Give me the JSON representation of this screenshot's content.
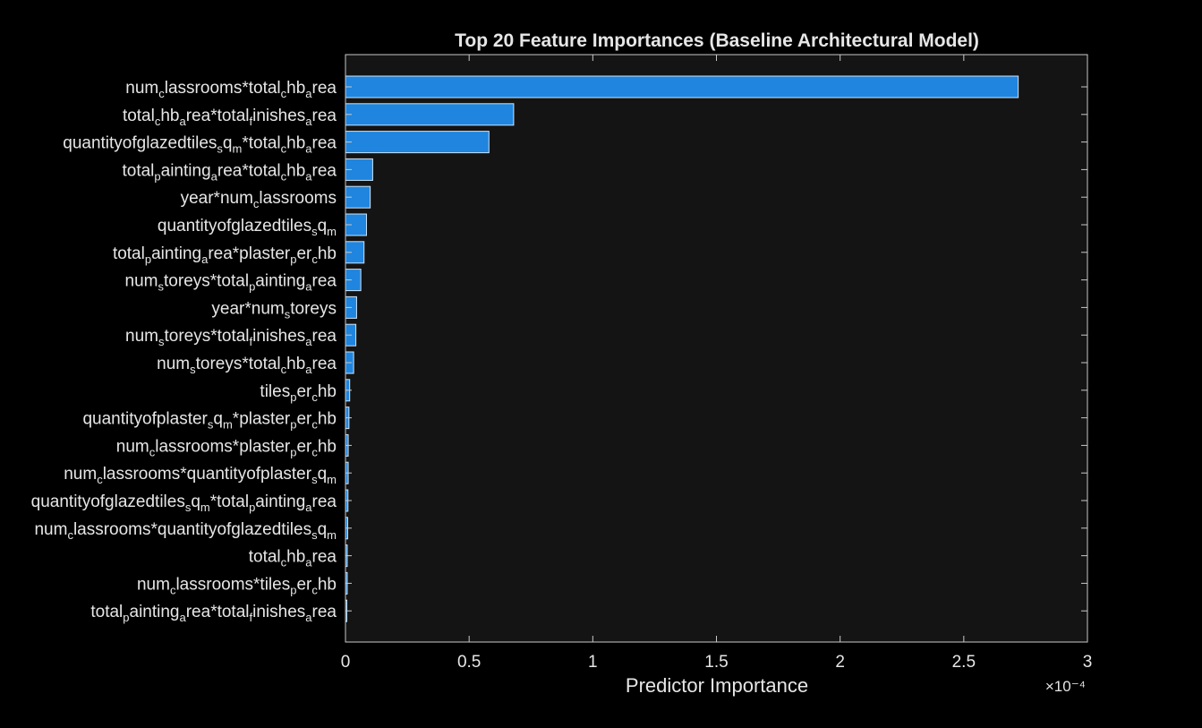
{
  "chart_data": {
    "type": "bar",
    "orientation": "horizontal",
    "title": "Top 20 Feature Importances (Baseline Architectural Model)",
    "xlabel": "Predictor Importance",
    "ylabel": "",
    "x_scale_label": "×10⁻⁴",
    "xlim": [
      0,
      3
    ],
    "xticks": [
      "0",
      "0.5",
      "1",
      "1.5",
      "2",
      "2.5",
      "3"
    ],
    "grid": false,
    "categories": [
      "num_classrooms*total_chb_area",
      "total_chb_area*total_finishes_area",
      "quantityofglazedtiles_sq_m*total_chb_area",
      "total_painting_area*total_chb_area",
      "year*num_classrooms",
      "quantityofglazedtiles_sq_m",
      "total_painting_area*plaster_per_chb",
      "num_storeys*total_painting_area",
      "year*num_storeys",
      "num_storeys*total_finishes_area",
      "num_storeys*total_chb_area",
      "tiles_per_chb",
      "quantityofplaster_sq_m*plaster_per_chb",
      "num_classrooms*plaster_per_chb",
      "num_classrooms*quantityofplaster_sq_m",
      "quantityofglazedtiles_sq_m*total_painting_area",
      "num_classrooms*quantityofglazedtiles_sq_m",
      "total_chb_area",
      "num_classrooms*tiles_per_chb",
      "total_painting_area*total_finishes_area"
    ],
    "values": [
      2.72,
      0.68,
      0.58,
      0.11,
      0.1,
      0.085,
      0.075,
      0.062,
      0.045,
      0.042,
      0.033,
      0.017,
      0.014,
      0.011,
      0.011,
      0.01,
      0.009,
      0.007,
      0.007,
      0.005
    ]
  },
  "colors": {
    "background": "#000000",
    "axes_background": "#141414",
    "bar_fill": "#1f85de",
    "bar_edge": "#cfe3f5",
    "axis_line": "#c8c8c8",
    "text": "#e6e6e6"
  }
}
